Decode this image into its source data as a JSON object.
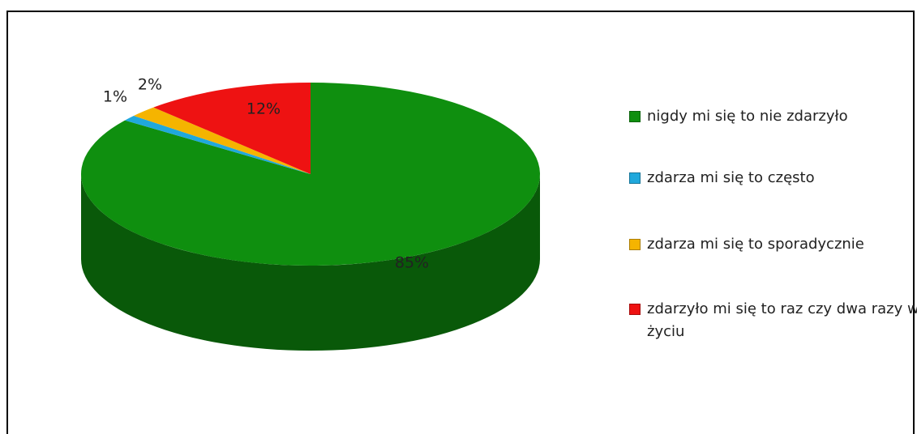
{
  "chart_data": {
    "type": "pie3d",
    "categories": [
      "nigdy mi się to nie zdarzyło",
      "zdarza mi się to często",
      "zdarza mi się to sporadycznie",
      "zdarzyło mi się to raz czy dwa razy w życiu"
    ],
    "values": [
      85,
      1,
      2,
      12
    ],
    "value_labels": [
      "85%",
      "1%",
      "2%",
      "12%"
    ],
    "colors": [
      "#0f8f0f",
      "#20a8dc",
      "#f5b400",
      "#ee1212"
    ],
    "legend": "right"
  }
}
